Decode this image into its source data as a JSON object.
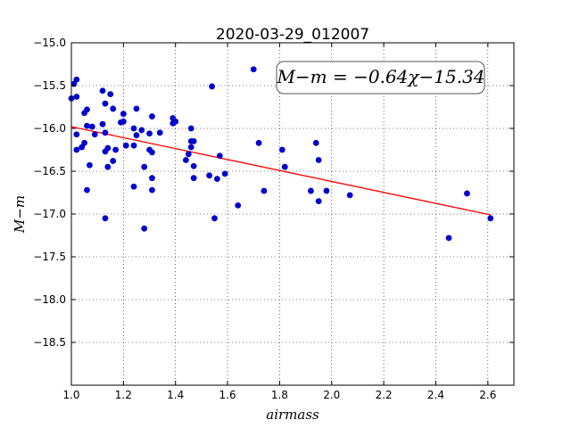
{
  "chart_data": {
    "type": "scatter",
    "title": "2020-03-29_012007",
    "xlabel": "airmass",
    "ylabel": "M−m",
    "xlim": [
      1.0,
      2.7
    ],
    "ylim": [
      -19.0,
      -15.0
    ],
    "y_inverted": true,
    "grid": true,
    "x_ticks": [
      1.0,
      1.2,
      1.4,
      1.6,
      1.8,
      2.0,
      2.2,
      2.4,
      2.6
    ],
    "x_tick_labels": [
      "1.0",
      "1.2",
      "1.4",
      "1.6",
      "1.8",
      "2.0",
      "2.2",
      "2.4",
      "2.6"
    ],
    "y_ticks": [
      -15.0,
      -15.5,
      -16.0,
      -16.5,
      -17.0,
      -17.5,
      -18.0,
      -18.5
    ],
    "y_tick_labels": [
      "−15.0",
      "−15.5",
      "−16.0",
      "−16.5",
      "−17.0",
      "−17.5",
      "−18.0",
      "−18.5"
    ],
    "annotation": "M−m = −0.64χ−15.34",
    "fit": {
      "slope": -0.64,
      "intercept": -15.34,
      "x_range": [
        1.0,
        2.61
      ],
      "color": "#ff0000"
    },
    "series": [
      {
        "color": "#0000cc",
        "points": [
          [
            1.0,
            -15.65
          ],
          [
            1.01,
            -15.48
          ],
          [
            1.02,
            -15.43
          ],
          [
            1.02,
            -15.63
          ],
          [
            1.02,
            -16.25
          ],
          [
            1.02,
            -16.07
          ],
          [
            1.04,
            -16.22
          ],
          [
            1.05,
            -15.82
          ],
          [
            1.05,
            -16.17
          ],
          [
            1.06,
            -15.78
          ],
          [
            1.06,
            -15.97
          ],
          [
            1.06,
            -16.72
          ],
          [
            1.07,
            -16.43
          ],
          [
            1.08,
            -15.98
          ],
          [
            1.09,
            -16.07
          ],
          [
            1.12,
            -15.56
          ],
          [
            1.12,
            -15.95
          ],
          [
            1.13,
            -15.71
          ],
          [
            1.13,
            -16.05
          ],
          [
            1.13,
            -16.27
          ],
          [
            1.14,
            -16.23
          ],
          [
            1.14,
            -16.45
          ],
          [
            1.15,
            -15.6
          ],
          [
            1.16,
            -16.38
          ],
          [
            1.16,
            -15.77
          ],
          [
            1.17,
            -16.25
          ],
          [
            1.13,
            -17.05
          ],
          [
            1.19,
            -15.93
          ],
          [
            1.2,
            -15.83
          ],
          [
            1.2,
            -15.92
          ],
          [
            1.21,
            -16.2
          ],
          [
            1.24,
            -16.2
          ],
          [
            1.24,
            -16.0
          ],
          [
            1.24,
            -16.68
          ],
          [
            1.25,
            -15.77
          ],
          [
            1.25,
            -16.08
          ],
          [
            1.27,
            -16.02
          ],
          [
            1.28,
            -16.45
          ],
          [
            1.28,
            -17.17
          ],
          [
            1.3,
            -16.25
          ],
          [
            1.3,
            -16.06
          ],
          [
            1.31,
            -16.28
          ],
          [
            1.31,
            -15.86
          ],
          [
            1.31,
            -16.58
          ],
          [
            1.31,
            -16.72
          ],
          [
            1.34,
            -16.05
          ],
          [
            1.39,
            -15.94
          ],
          [
            1.39,
            -15.88
          ],
          [
            1.4,
            -15.92
          ],
          [
            1.44,
            -16.37
          ],
          [
            1.45,
            -16.3
          ],
          [
            1.46,
            -16.15
          ],
          [
            1.46,
            -16.0
          ],
          [
            1.46,
            -16.22
          ],
          [
            1.47,
            -16.15
          ],
          [
            1.47,
            -16.44
          ],
          [
            1.47,
            -16.58
          ],
          [
            1.53,
            -16.55
          ],
          [
            1.54,
            -15.51
          ],
          [
            1.55,
            -17.05
          ],
          [
            1.56,
            -16.59
          ],
          [
            1.57,
            -16.32
          ],
          [
            1.59,
            -16.53
          ],
          [
            1.64,
            -16.9
          ],
          [
            1.7,
            -15.31
          ],
          [
            1.72,
            -16.17
          ],
          [
            1.74,
            -16.73
          ],
          [
            1.81,
            -16.25
          ],
          [
            1.82,
            -16.45
          ],
          [
            1.92,
            -16.73
          ],
          [
            1.94,
            -16.17
          ],
          [
            1.95,
            -16.37
          ],
          [
            1.95,
            -16.85
          ],
          [
            1.98,
            -16.73
          ],
          [
            2.07,
            -16.78
          ],
          [
            2.45,
            -17.28
          ],
          [
            2.52,
            -16.76
          ],
          [
            2.61,
            -17.05
          ]
        ]
      }
    ]
  }
}
